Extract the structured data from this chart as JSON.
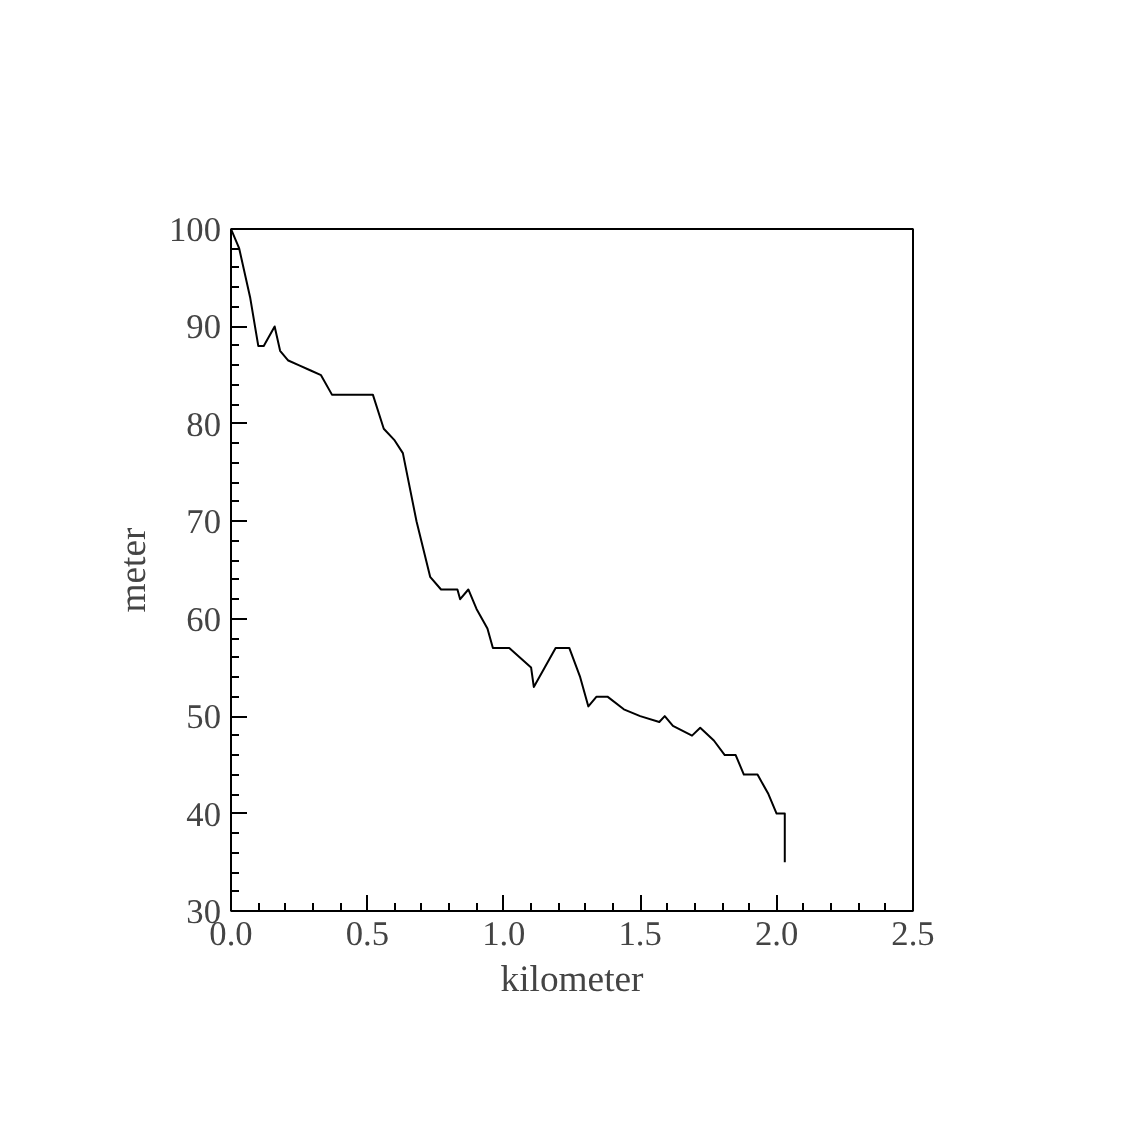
{
  "chart_data": {
    "type": "line",
    "xlabel": "kilometer",
    "ylabel": "meter",
    "xlim": [
      0,
      2.5
    ],
    "ylim": [
      30,
      100
    ],
    "xticks": [
      {
        "value": 0,
        "label": "0.0"
      },
      {
        "value": 0.5,
        "label": "0.5"
      },
      {
        "value": 1,
        "label": "1.0"
      },
      {
        "value": 1.5,
        "label": "1.5"
      },
      {
        "value": 2,
        "label": "2.0"
      },
      {
        "value": 2.5,
        "label": "2.5"
      }
    ],
    "yticks": [
      30,
      40,
      50,
      60,
      70,
      80,
      90,
      100
    ],
    "grid": false,
    "marker": "none",
    "line_style": "solid",
    "series": [
      {
        "color": "#000000",
        "x": [
          0,
          0.03,
          0.07,
          0.1,
          0.12,
          0.16,
          0.18,
          0.21,
          0.25,
          0.29,
          0.33,
          0.37,
          0.52,
          0.56,
          0.6,
          0.63,
          0.68,
          0.73,
          0.77,
          0.83,
          0.84,
          0.87,
          0.9,
          0.94,
          0.96,
          1.02,
          1.06,
          1.1,
          1.11,
          1.15,
          1.19,
          1.24,
          1.28,
          1.31,
          1.34,
          1.38,
          1.44,
          1.5,
          1.57,
          1.59,
          1.62,
          1.69,
          1.72,
          1.77,
          1.81,
          1.85,
          1.88,
          1.93,
          1.97,
          2.0,
          2.03,
          2.03
        ],
        "values": [
          100,
          98,
          93,
          88,
          88,
          90,
          87.5,
          86.5,
          86,
          85.5,
          85,
          83,
          83,
          79.5,
          78.3,
          77,
          70,
          64.3,
          63,
          63,
          62,
          63,
          61,
          59,
          57,
          57,
          56,
          55,
          53,
          55,
          57,
          57,
          54,
          51,
          52,
          52,
          50.7,
          50,
          49.4,
          50,
          49,
          48,
          48.8,
          47.5,
          46,
          46,
          44,
          44,
          42,
          40,
          40,
          35
        ]
      }
    ]
  }
}
